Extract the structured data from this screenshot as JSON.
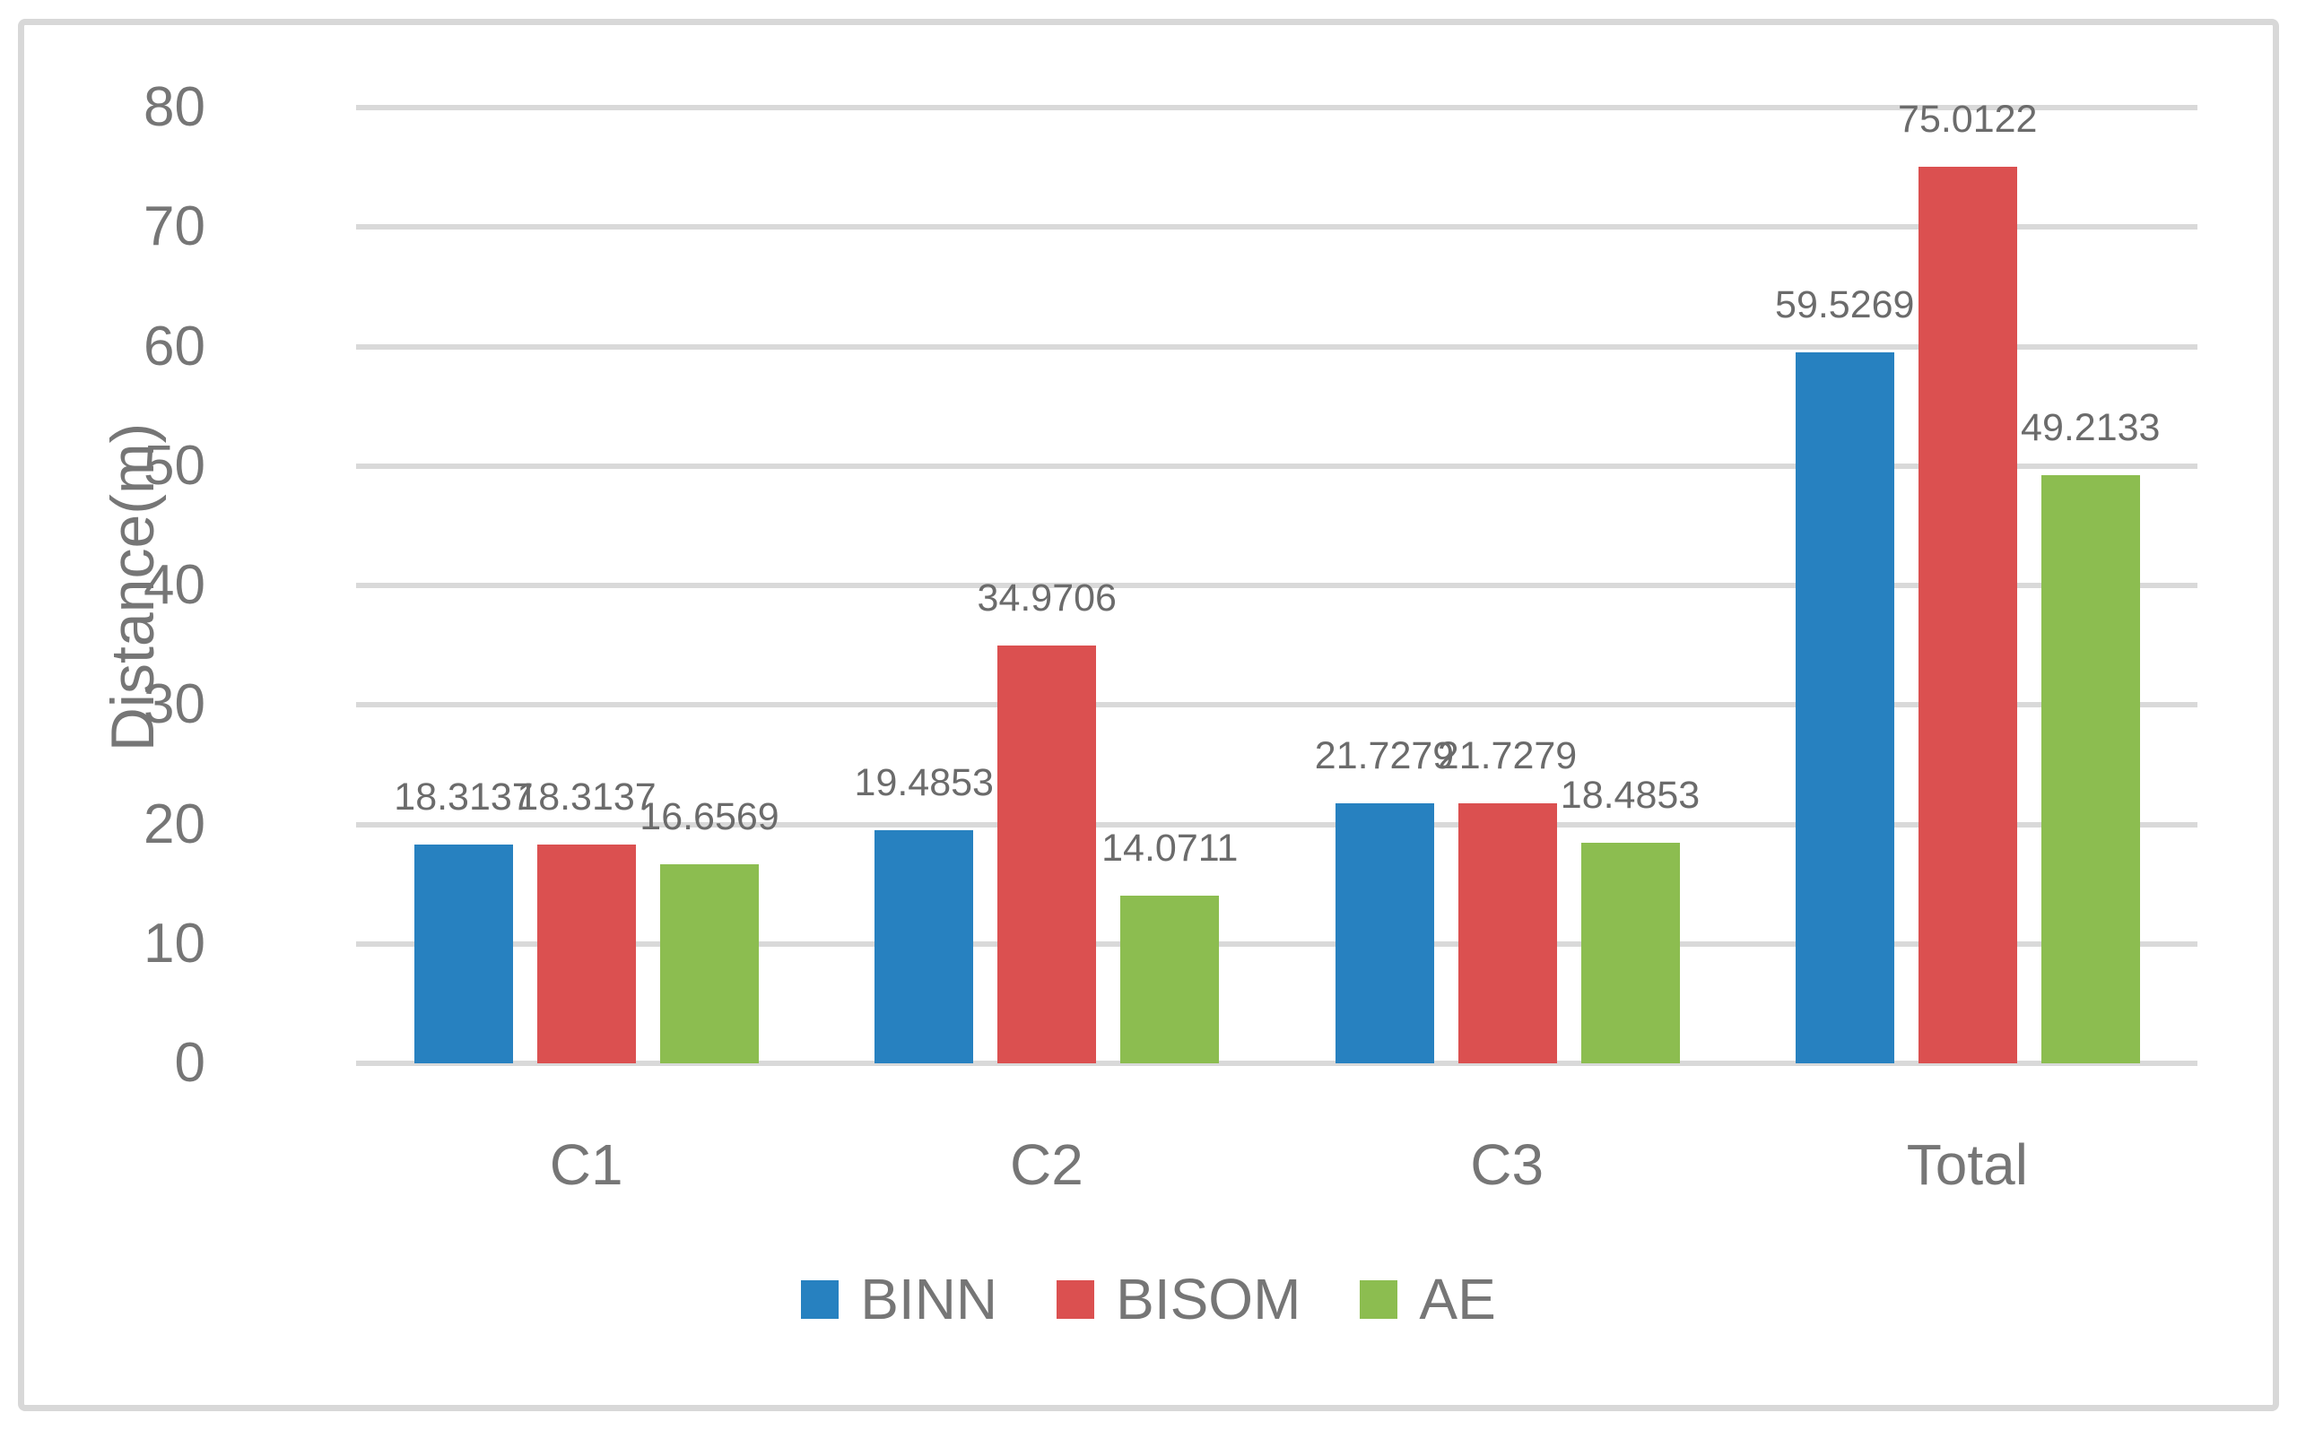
{
  "chart_data": {
    "type": "bar",
    "title": "",
    "xlabel": "",
    "ylabel": "Distance(m)",
    "categories": [
      "C1",
      "C2",
      "C3",
      "Total"
    ],
    "series": [
      {
        "name": "BINN",
        "color": "#2781c0",
        "values": [
          18.3137,
          19.4853,
          21.7279,
          59.5269
        ],
        "labels": [
          "18.3137",
          "19.4853",
          "21.7279",
          "59.5269"
        ]
      },
      {
        "name": "BISOM",
        "color": "#db5050",
        "values": [
          18.3137,
          34.9706,
          21.7279,
          75.0122
        ],
        "labels": [
          "18.3137",
          "34.9706",
          "21.7279",
          "75.0122"
        ]
      },
      {
        "name": "AE",
        "color": "#8cbd50",
        "values": [
          16.6569,
          14.0711,
          18.4853,
          49.2133
        ],
        "labels": [
          "16.6569",
          "14.0711",
          "18.4853",
          "49.2133"
        ]
      }
    ],
    "ylim": [
      0,
      80
    ],
    "ytick_interval": 10,
    "yticks": [
      "0",
      "10",
      "20",
      "30",
      "40",
      "50",
      "60",
      "70",
      "80"
    ],
    "grid": true,
    "legend_position": "bottom"
  },
  "colors": {
    "gridline": "#d9d9d9",
    "frame_border": "#d8d8d8",
    "text_gray": "#767676",
    "data_label_gray": "#6b6b6b",
    "background": "#ffffff"
  }
}
